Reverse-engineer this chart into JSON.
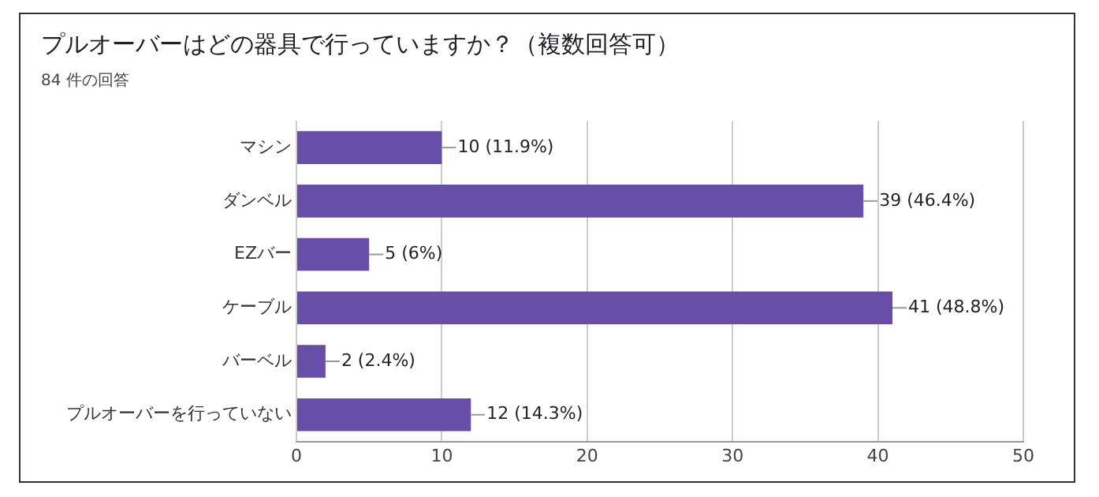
{
  "chart_data": {
    "type": "bar",
    "orientation": "horizontal",
    "title": "プルオーバーはどの器具で行っていますか？（複数回答可）",
    "subtitle": "84 件の回答",
    "categories": [
      "マシン",
      "ダンベル",
      "EZバー",
      "ケーブル",
      "バーベル",
      "プルオーバーを行っていない"
    ],
    "values": [
      10,
      39,
      5,
      41,
      2,
      12
    ],
    "value_labels": [
      "10 (11.9%)",
      "39 (46.4%)",
      "5 (6%)",
      "41 (48.8%)",
      "2 (2.4%)",
      "12 (14.3%)"
    ],
    "color": "#674ea7",
    "xlim": [
      0,
      50
    ],
    "xticks": [
      0,
      10,
      20,
      30,
      40,
      50
    ],
    "grid": "x",
    "legend": false
  }
}
